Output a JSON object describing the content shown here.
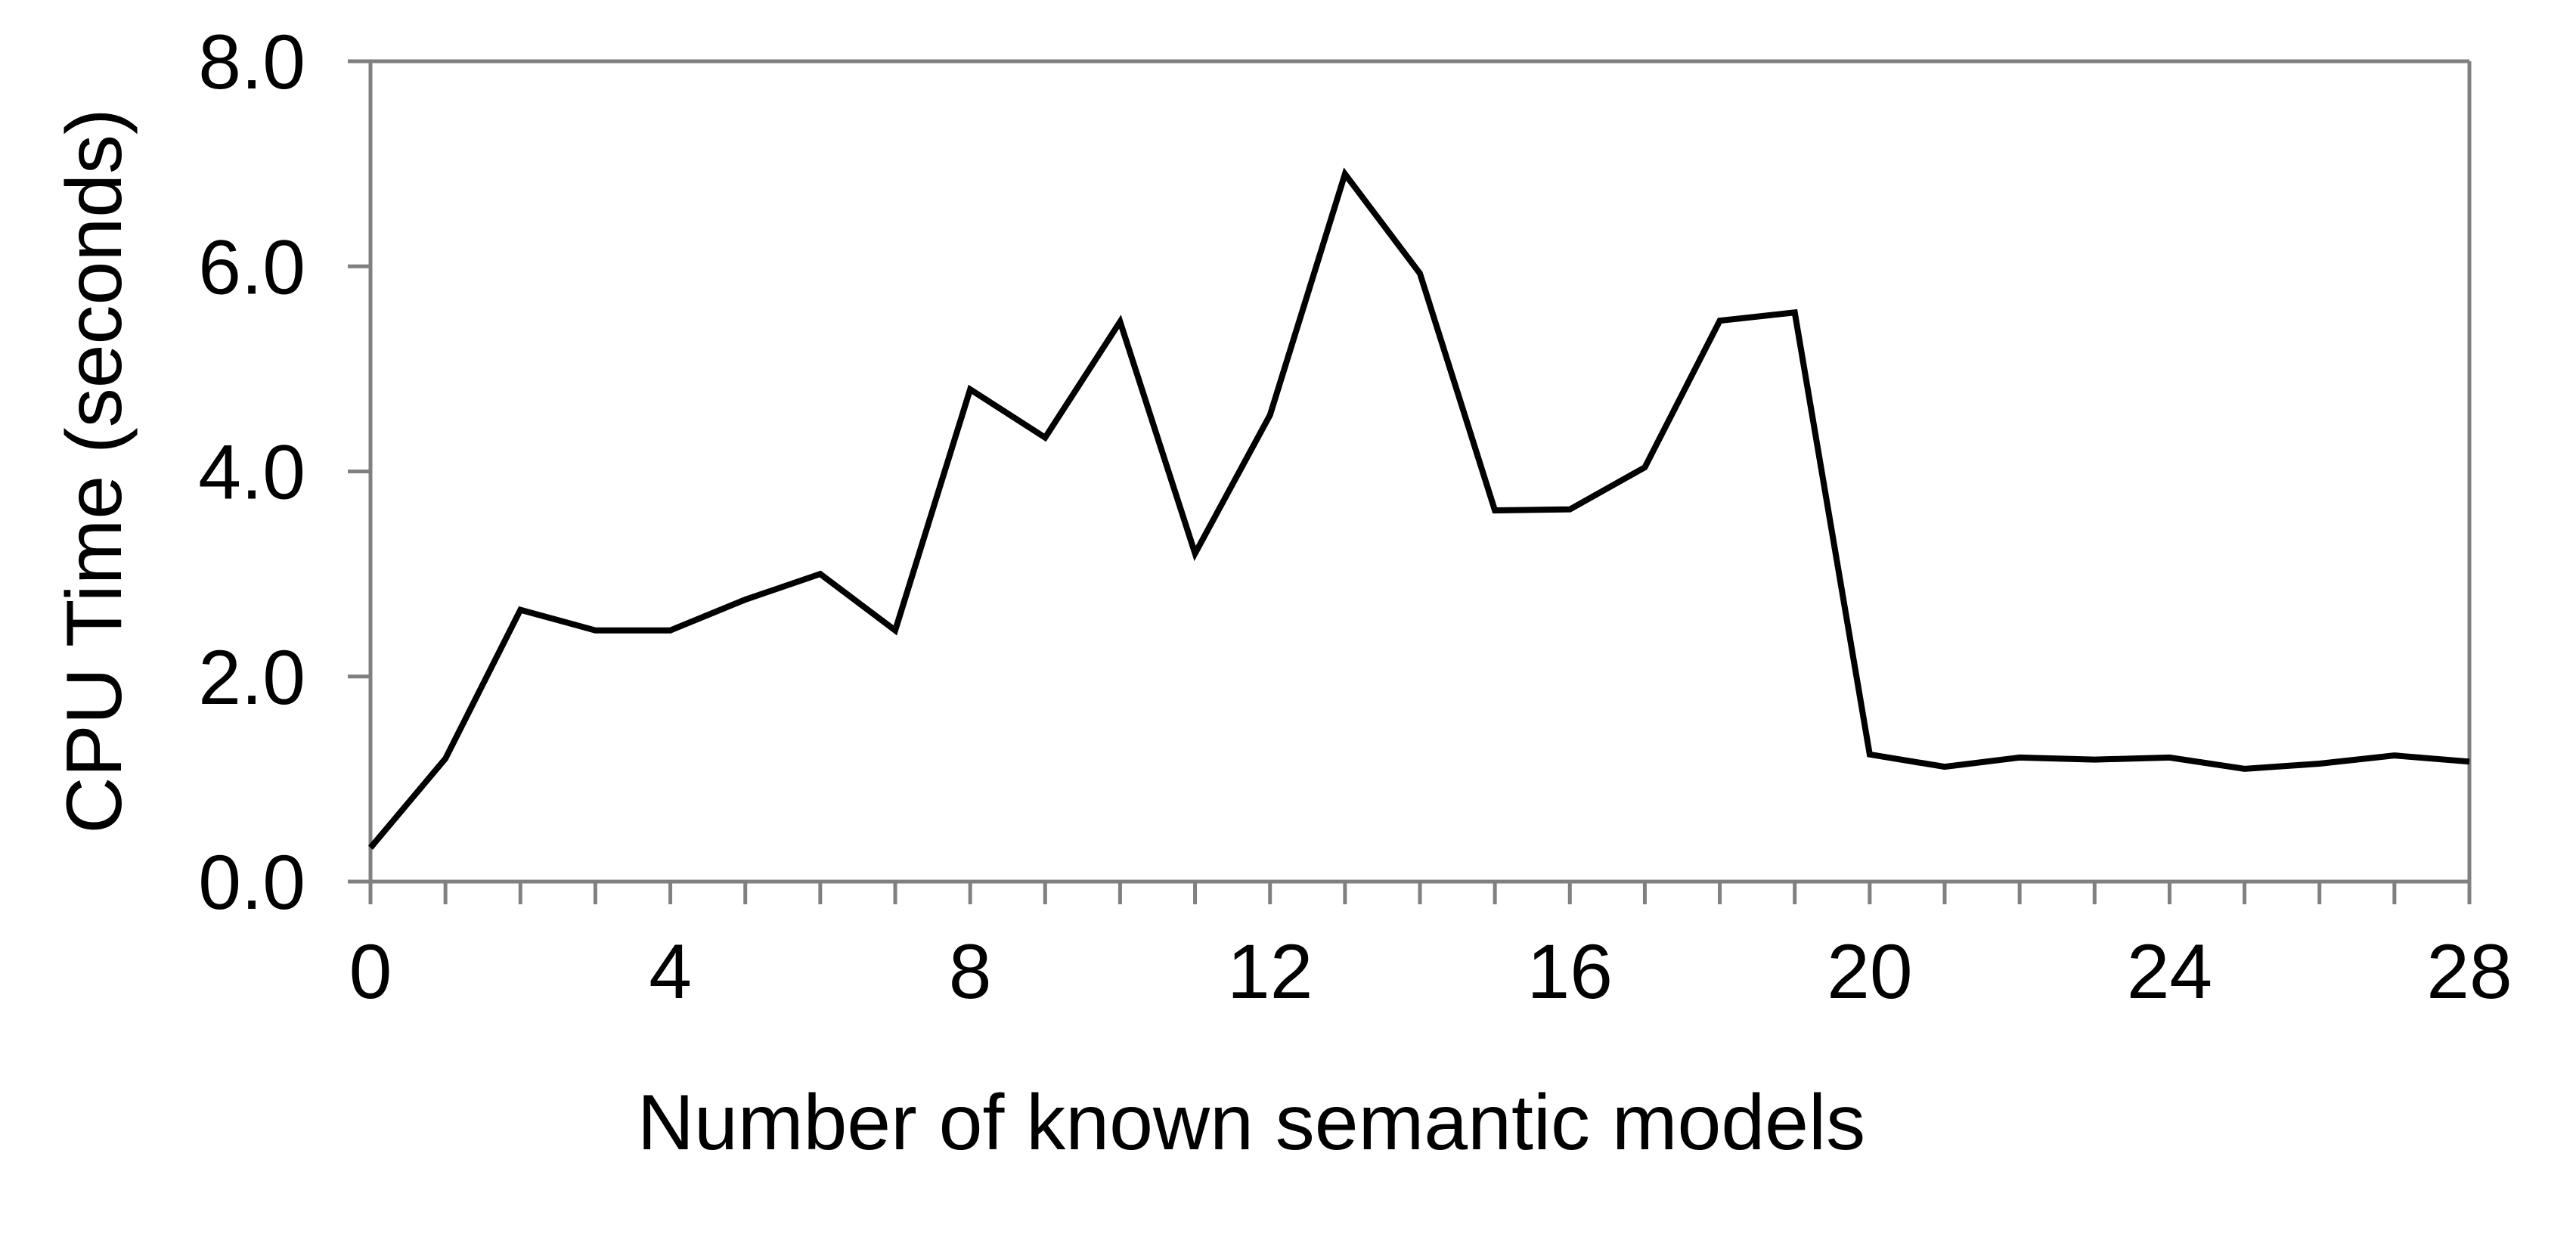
{
  "chart_data": {
    "type": "line",
    "title": "",
    "xlabel": "Number of known semantic models",
    "ylabel": "CPU Time (seconds)",
    "x": [
      0,
      1,
      2,
      3,
      4,
      5,
      6,
      7,
      8,
      9,
      10,
      11,
      12,
      13,
      14,
      15,
      16,
      17,
      18,
      19,
      20,
      21,
      22,
      23,
      24,
      25,
      26,
      27,
      28
    ],
    "series": [
      {
        "name": "CPU Time",
        "values": [
          0.33,
          1.2,
          2.65,
          2.45,
          2.45,
          2.75,
          3.0,
          2.45,
          4.8,
          4.33,
          5.46,
          3.2,
          4.55,
          6.9,
          5.93,
          3.62,
          3.63,
          4.04,
          5.47,
          5.55,
          1.24,
          1.12,
          1.21,
          1.19,
          1.21,
          1.1,
          1.15,
          1.23,
          1.17
        ]
      }
    ],
    "xlim": [
      0,
      28
    ],
    "ylim": [
      0.0,
      8.0
    ],
    "x_tick_step_minor": 1,
    "x_labeled_ticks": [
      0,
      4,
      8,
      12,
      16,
      20,
      24,
      28
    ],
    "x_tick_labels": [
      "0",
      "4",
      "8",
      "12",
      "16",
      "20",
      "24",
      "28"
    ],
    "y_tick_values": [
      0.0,
      2.0,
      4.0,
      6.0,
      8.0
    ],
    "y_tick_labels": [
      "0.0",
      "2.0",
      "4.0",
      "6.0",
      "8.0"
    ],
    "grid": "off",
    "legend": "none",
    "line_color": "#000000",
    "axis_color": "#808080",
    "background_color": "#ffffff"
  }
}
